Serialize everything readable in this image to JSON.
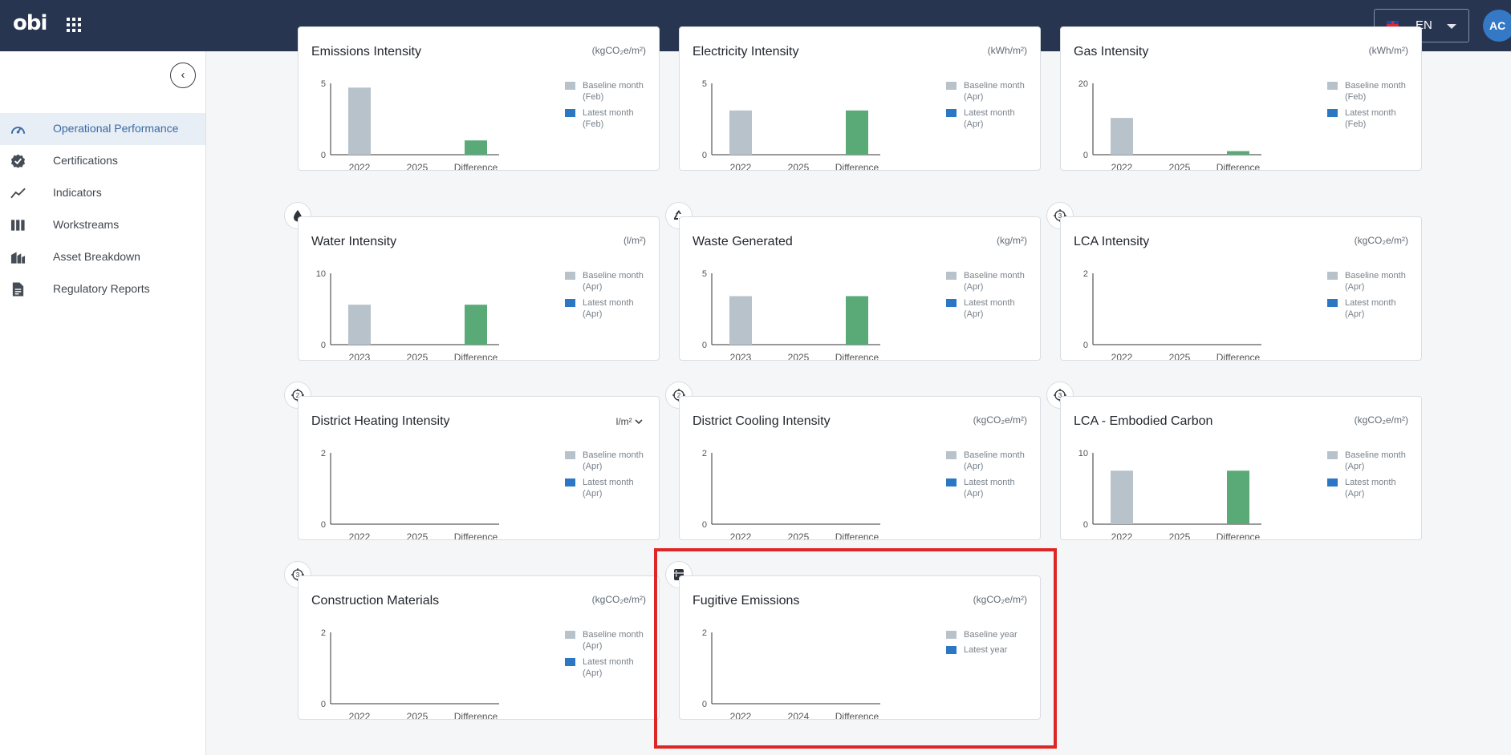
{
  "app": {
    "logo": "obi",
    "language": "EN",
    "user_initials": "AC"
  },
  "sidebar": {
    "items": [
      {
        "label": "Operational Performance",
        "icon": "gauge-icon",
        "active": true
      },
      {
        "label": "Certifications",
        "icon": "certificate-badge-icon",
        "active": false
      },
      {
        "label": "Indicators",
        "icon": "trend-line-icon",
        "active": false
      },
      {
        "label": "Workstreams",
        "icon": "columns-icon",
        "active": false
      },
      {
        "label": "Asset Breakdown",
        "icon": "buildings-icon",
        "active": false
      },
      {
        "label": "Regulatory Reports",
        "icon": "document-icon",
        "active": false
      }
    ]
  },
  "legend_labels": {
    "baseline_month": "Baseline month",
    "latest_month": "Latest month",
    "baseline_year": "Baseline year",
    "latest_year": "Latest year"
  },
  "colors": {
    "baseline_bar": "#b8c2ca",
    "difference_bar": "#5aaa78",
    "latest_swatch": "#2c77c3",
    "highlight": "#dd2727"
  },
  "cards": [
    {
      "title": "Emissions Intensity",
      "unit": "(kgCO₂e/m²)",
      "badge": "",
      "legend_base": "(Feb)",
      "legend_latest": "(Feb)"
    },
    {
      "title": "Electricity Intensity",
      "unit": "(kWh/m²)",
      "badge": "",
      "legend_base": "(Apr)",
      "legend_latest": "(Apr)"
    },
    {
      "title": "Gas Intensity",
      "unit": "(kWh/m²)",
      "badge": "",
      "legend_base": "(Feb)",
      "legend_latest": "(Feb)"
    },
    {
      "title": "Water Intensity",
      "unit": "(l/m²)",
      "badge": "water-drop-icon",
      "legend_base": "(Apr)",
      "legend_latest": "(Apr)"
    },
    {
      "title": "Waste Generated",
      "unit": "(kg/m²)",
      "badge": "recycle-icon",
      "legend_base": "(Apr)",
      "legend_latest": "(Apr)"
    },
    {
      "title": "LCA Intensity",
      "unit": "(kgCO₂e/m²)",
      "badge": "3",
      "legend_base": "(Apr)",
      "legend_latest": "(Apr)"
    },
    {
      "title": "District Heating Intensity",
      "unit": "l/m²",
      "badge": "2",
      "legend_base": "(Apr)",
      "legend_latest": "(Apr)"
    },
    {
      "title": "District Cooling Intensity",
      "unit": "(kgCO₂e/m²)",
      "badge": "2",
      "legend_base": "(Apr)",
      "legend_latest": "(Apr)"
    },
    {
      "title": "LCA - Embodied Carbon",
      "unit": "(kgCO₂e/m²)",
      "badge": "3",
      "legend_base": "(Apr)",
      "legend_latest": "(Apr)"
    },
    {
      "title": "Construction Materials",
      "unit": "(kgCO₂e/m²)",
      "badge": "3",
      "legend_base": "(Apr)",
      "legend_latest": "(Apr)"
    },
    {
      "title": "Fugitive Emissions",
      "unit": "(kgCO₂e/m²)",
      "badge": "refrigerator-icon",
      "legend_base": "",
      "legend_latest": ""
    }
  ],
  "chart_data": [
    {
      "type": "bar",
      "title": "Emissions Intensity",
      "categories": [
        "2022",
        "2025",
        "Difference"
      ],
      "values": [
        4.7,
        null,
        1.0
      ],
      "ylim": [
        0,
        5
      ],
      "yticks": [
        "5",
        "0"
      ]
    },
    {
      "type": "bar",
      "title": "Electricity Intensity",
      "categories": [
        "2022",
        "2025",
        "Difference"
      ],
      "values": [
        3.1,
        null,
        3.1
      ],
      "ylim": [
        0,
        5
      ],
      "yticks": [
        "5",
        "0"
      ]
    },
    {
      "type": "bar",
      "title": "Gas Intensity",
      "categories": [
        "2022",
        "2025",
        "Difference"
      ],
      "values": [
        10.3,
        null,
        1.0
      ],
      "ylim": [
        0,
        20
      ],
      "yticks": [
        "20",
        "0"
      ]
    },
    {
      "type": "bar",
      "title": "Water Intensity",
      "categories": [
        "2023",
        "2025",
        "Difference"
      ],
      "values": [
        5.6,
        null,
        5.6
      ],
      "ylim": [
        0,
        10
      ],
      "yticks": [
        "10",
        "0"
      ]
    },
    {
      "type": "bar",
      "title": "Waste Generated",
      "categories": [
        "2023",
        "2025",
        "Difference"
      ],
      "values": [
        3.4,
        null,
        3.4
      ],
      "ylim": [
        0,
        5
      ],
      "yticks": [
        "5",
        "0"
      ]
    },
    {
      "type": "bar",
      "title": "LCA Intensity",
      "categories": [
        "2022",
        "2025",
        "Difference"
      ],
      "values": [
        null,
        null,
        null
      ],
      "ylim": [
        0,
        2
      ],
      "yticks": [
        "2",
        "0"
      ]
    },
    {
      "type": "bar",
      "title": "District Heating Intensity",
      "categories": [
        "2022",
        "2025",
        "Difference"
      ],
      "values": [
        null,
        null,
        null
      ],
      "ylim": [
        0,
        2
      ],
      "yticks": [
        "2",
        "0"
      ]
    },
    {
      "type": "bar",
      "title": "District Cooling Intensity",
      "categories": [
        "2022",
        "2025",
        "Difference"
      ],
      "values": [
        null,
        null,
        null
      ],
      "ylim": [
        0,
        2
      ],
      "yticks": [
        "2",
        "0"
      ]
    },
    {
      "type": "bar",
      "title": "LCA - Embodied Carbon",
      "categories": [
        "2022",
        "2025",
        "Difference"
      ],
      "values": [
        7.5,
        null,
        7.5
      ],
      "ylim": [
        0,
        10
      ],
      "yticks": [
        "10",
        "0"
      ]
    },
    {
      "type": "bar",
      "title": "Construction Materials",
      "categories": [
        "2022",
        "2025",
        "Difference"
      ],
      "values": [
        null,
        null,
        null
      ],
      "ylim": [
        0,
        2
      ],
      "yticks": [
        "2",
        "0"
      ]
    },
    {
      "type": "bar",
      "title": "Fugitive Emissions",
      "categories": [
        "2022",
        "2024",
        "Difference"
      ],
      "values": [
        null,
        null,
        null
      ],
      "ylim": [
        0,
        2
      ],
      "yticks": [
        "2",
        "0"
      ]
    }
  ]
}
